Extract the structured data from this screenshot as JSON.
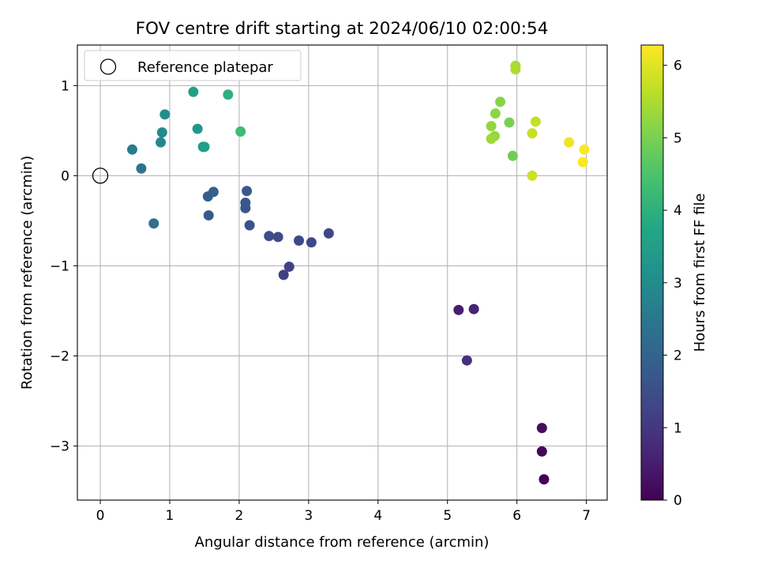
{
  "chart_data": {
    "type": "scatter",
    "title": "FOV centre drift starting at 2024/06/10 02:00:54",
    "xlabel": "Angular distance from reference (arcmin)",
    "ylabel": "Rotation from reference (arcmin)",
    "xlim": [
      -0.33,
      7.3
    ],
    "ylim": [
      -3.6,
      1.45
    ],
    "xticks": [
      0,
      1,
      2,
      3,
      4,
      5,
      6,
      7
    ],
    "yticks": [
      1,
      0,
      -1,
      -2,
      -3
    ],
    "grid": true,
    "legend": {
      "position": "top-left",
      "entries": [
        "Reference platepar"
      ]
    },
    "reference_point": {
      "x": 0,
      "y": 0
    },
    "colorbar": {
      "label": "Hours from first FF file",
      "colormap": "viridis",
      "range": [
        0,
        6.28
      ],
      "ticks": [
        0,
        1,
        2,
        3,
        4,
        5,
        6
      ]
    },
    "points": [
      {
        "x": 6.39,
        "y": -3.37,
        "hours": 0.0
      },
      {
        "x": 6.36,
        "y": -3.06,
        "hours": 0.1
      },
      {
        "x": 6.36,
        "y": -2.8,
        "hours": 0.2
      },
      {
        "x": 5.16,
        "y": -1.49,
        "hours": 0.5
      },
      {
        "x": 5.38,
        "y": -1.48,
        "hours": 0.6
      },
      {
        "x": 5.28,
        "y": -2.05,
        "hours": 0.9
      },
      {
        "x": 2.64,
        "y": -1.1,
        "hours": 1.15
      },
      {
        "x": 2.72,
        "y": -1.01,
        "hours": 1.2
      },
      {
        "x": 3.29,
        "y": -0.64,
        "hours": 1.3
      },
      {
        "x": 3.04,
        "y": -0.74,
        "hours": 1.35
      },
      {
        "x": 2.86,
        "y": -0.72,
        "hours": 1.4
      },
      {
        "x": 2.56,
        "y": -0.68,
        "hours": 1.45
      },
      {
        "x": 2.43,
        "y": -0.67,
        "hours": 1.5
      },
      {
        "x": 2.15,
        "y": -0.55,
        "hours": 1.6
      },
      {
        "x": 2.09,
        "y": -0.36,
        "hours": 1.65
      },
      {
        "x": 2.09,
        "y": -0.3,
        "hours": 1.7
      },
      {
        "x": 2.11,
        "y": -0.17,
        "hours": 1.75
      },
      {
        "x": 1.56,
        "y": -0.44,
        "hours": 1.8
      },
      {
        "x": 1.55,
        "y": -0.23,
        "hours": 1.85
      },
      {
        "x": 1.63,
        "y": -0.18,
        "hours": 1.9
      },
      {
        "x": 0.77,
        "y": -0.53,
        "hours": 2.3
      },
      {
        "x": 0.59,
        "y": 0.08,
        "hours": 2.4
      },
      {
        "x": 0.46,
        "y": 0.29,
        "hours": 2.6
      },
      {
        "x": 0.87,
        "y": 0.37,
        "hours": 2.95
      },
      {
        "x": 0.89,
        "y": 0.48,
        "hours": 3.0
      },
      {
        "x": 0.93,
        "y": 0.68,
        "hours": 3.1
      },
      {
        "x": 1.4,
        "y": 0.52,
        "hours": 3.3
      },
      {
        "x": 1.48,
        "y": 0.32,
        "hours": 3.45
      },
      {
        "x": 1.5,
        "y": 0.32,
        "hours": 3.5
      },
      {
        "x": 1.34,
        "y": 0.93,
        "hours": 3.55
      },
      {
        "x": 1.84,
        "y": 0.9,
        "hours": 4.0
      },
      {
        "x": 2.02,
        "y": 0.49,
        "hours": 4.3
      },
      {
        "x": 5.94,
        "y": 0.22,
        "hours": 4.9
      },
      {
        "x": 5.89,
        "y": 0.59,
        "hours": 5.0
      },
      {
        "x": 5.76,
        "y": 0.82,
        "hours": 5.15
      },
      {
        "x": 5.69,
        "y": 0.69,
        "hours": 5.2
      },
      {
        "x": 5.63,
        "y": 0.55,
        "hours": 5.25
      },
      {
        "x": 5.68,
        "y": 0.44,
        "hours": 5.3
      },
      {
        "x": 5.63,
        "y": 0.41,
        "hours": 5.35
      },
      {
        "x": 5.98,
        "y": 1.22,
        "hours": 5.45
      },
      {
        "x": 5.98,
        "y": 1.18,
        "hours": 5.5
      },
      {
        "x": 6.27,
        "y": 0.6,
        "hours": 5.7
      },
      {
        "x": 6.22,
        "y": 0.47,
        "hours": 5.75
      },
      {
        "x": 6.22,
        "y": 0.0,
        "hours": 5.8
      },
      {
        "x": 6.75,
        "y": 0.37,
        "hours": 6.15
      },
      {
        "x": 6.97,
        "y": 0.29,
        "hours": 6.25
      },
      {
        "x": 6.95,
        "y": 0.15,
        "hours": 6.28
      }
    ]
  }
}
